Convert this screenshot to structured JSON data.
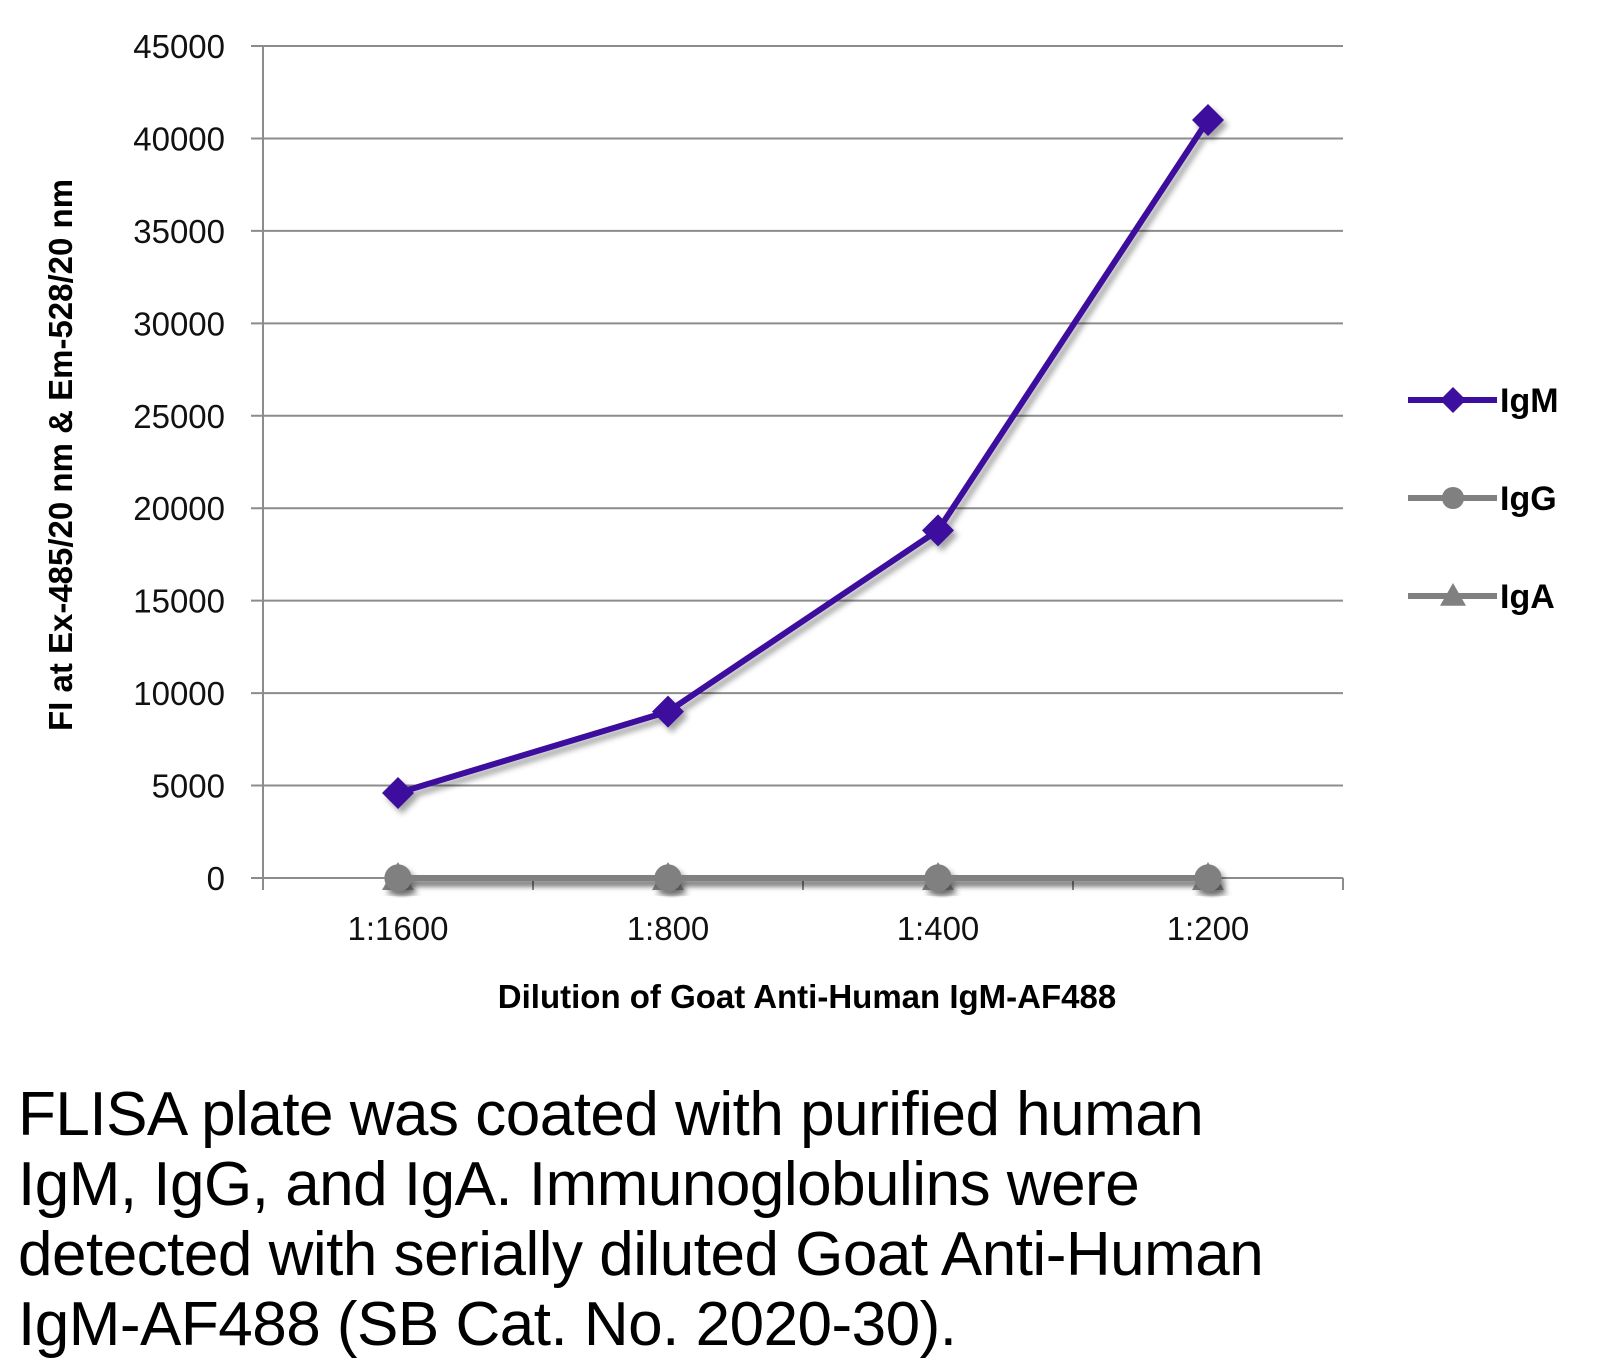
{
  "chart_data": {
    "type": "line",
    "title": "",
    "xlabel": "Dilution of Goat Anti-Human IgM-AF488",
    "ylabel": "FI at Ex-485/20 nm & Em-528/20 nm",
    "categories": [
      "1:1600",
      "1:800",
      "1:400",
      "1:200"
    ],
    "ylim": [
      0,
      45000
    ],
    "yticks": [
      0,
      5000,
      10000,
      15000,
      20000,
      25000,
      30000,
      35000,
      40000,
      45000
    ],
    "grid": true,
    "legend_position": "right",
    "series": [
      {
        "name": "IgM",
        "values": [
          4600,
          9000,
          18800,
          41000
        ],
        "color": "#3d0f9e",
        "marker": "diamond"
      },
      {
        "name": "IgG",
        "values": [
          0,
          0,
          0,
          0
        ],
        "color": "#808080",
        "marker": "circle"
      },
      {
        "name": "IgA",
        "values": [
          0,
          0,
          0,
          0
        ],
        "color": "#808080",
        "marker": "triangle"
      }
    ]
  },
  "caption": "FLISA plate was coated with purified human IgM, IgG, and IgA.  Immunoglobulins were detected with serially diluted Goat Anti-Human IgM-AF488 (SB Cat. No. 2020-30)."
}
